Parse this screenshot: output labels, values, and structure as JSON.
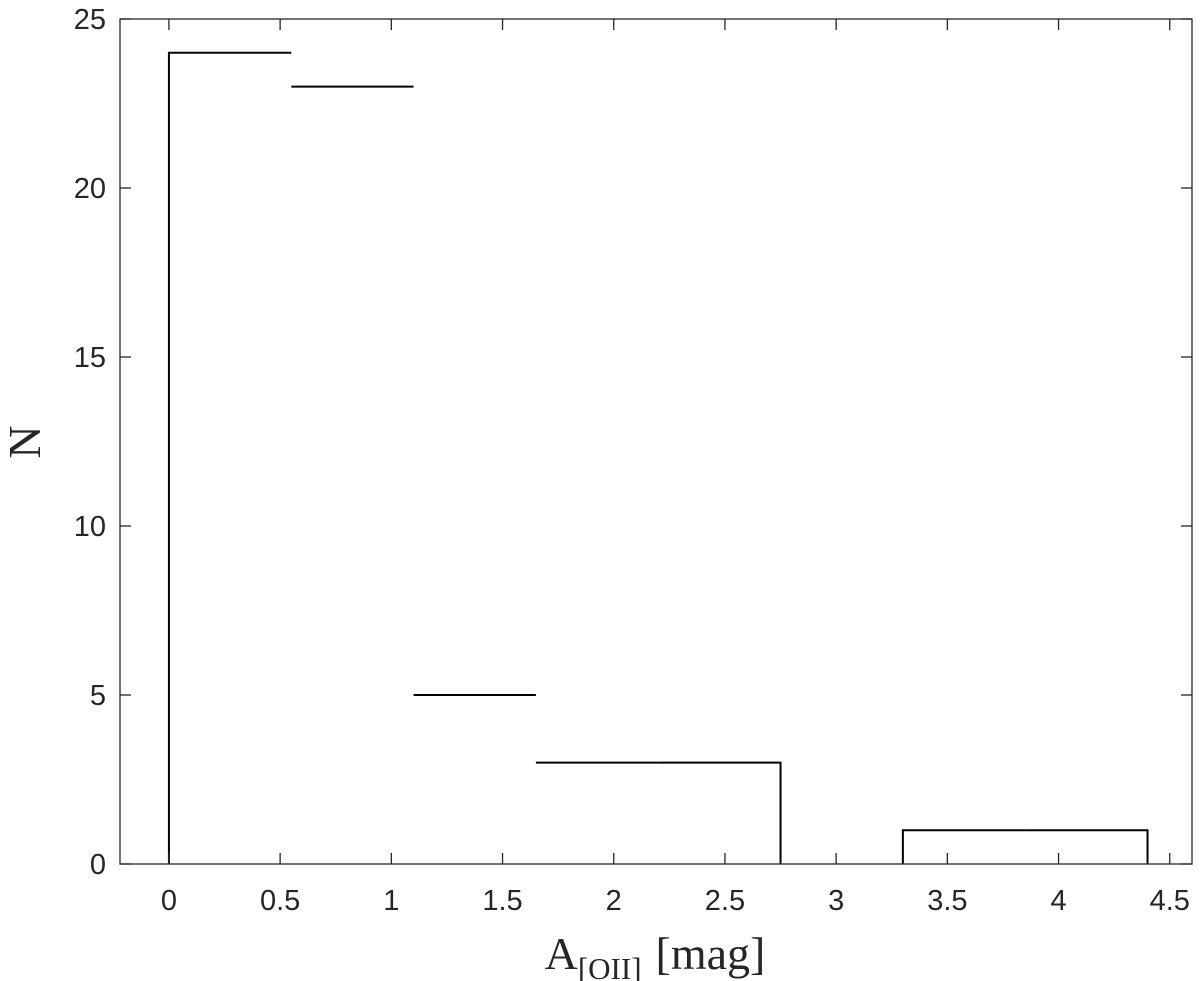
{
  "chart_data": {
    "type": "bar",
    "style": "stairs-histogram",
    "title": "",
    "xlabel": {
      "main": "A",
      "subscript": "[OII]",
      "suffix": "[mag]"
    },
    "ylabel": "N",
    "bin_edges": [
      0,
      0.55,
      1.1,
      1.65,
      2.2,
      2.75,
      3.3,
      3.85,
      4.4
    ],
    "values": [
      24,
      23,
      5,
      3,
      3,
      0,
      1,
      1
    ],
    "xlim": [
      -0.22,
      4.6
    ],
    "ylim": [
      0,
      25
    ],
    "xticks": [
      0,
      0.5,
      1,
      1.5,
      2,
      2.5,
      3,
      3.5,
      4,
      4.5
    ],
    "xtick_labels": [
      "0",
      "0.5",
      "1",
      "1.5",
      "2",
      "2.5",
      "3",
      "3.5",
      "4",
      "4.5"
    ],
    "yticks": [
      0,
      5,
      10,
      15,
      20,
      25
    ],
    "ytick_labels": [
      "0",
      "5",
      "10",
      "15",
      "20",
      "25"
    ],
    "grid": false,
    "box": true,
    "line_color": "#000000",
    "axis_color": "#262626"
  }
}
